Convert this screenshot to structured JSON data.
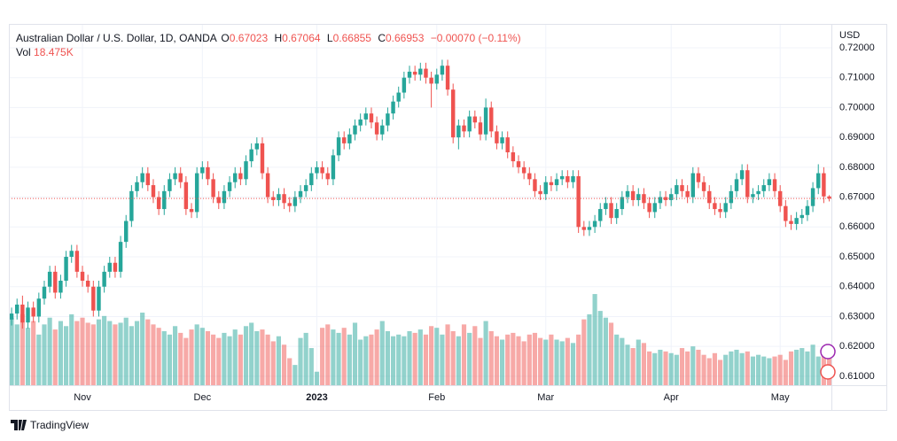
{
  "chart_data": {
    "type": "candlestick",
    "title": "Australian Dollar / U.S. Dollar, 1D, OANDA",
    "legend": {
      "items": [
        {
          "label": "O",
          "value": "0.67023"
        },
        {
          "label": "H",
          "value": "0.67064"
        },
        {
          "label": "L",
          "value": "0.66855"
        },
        {
          "label": "C",
          "value": "0.66953"
        }
      ],
      "change": "−0.00070 (−0.11%)",
      "volume_label": "Vol",
      "volume_value": "18.475K"
    },
    "y_axis_label": "USD",
    "up_color": "#26a69a",
    "down_color": "#ef5350",
    "volume_up_color": "rgba(38,166,154,0.5)",
    "volume_down_color": "rgba(239,83,80,0.5)",
    "grid": true,
    "xlim": [
      -0.5,
      150.4
    ],
    "ylim": [
      0.607,
      0.728
    ],
    "y2lim": [
      0,
      214
    ],
    "xticks": [
      {
        "value": 13,
        "label": "Nov"
      },
      {
        "value": 35,
        "label": "Dec"
      },
      {
        "value": 56,
        "label": "2023"
      },
      {
        "value": 78,
        "label": "Feb"
      },
      {
        "value": 98,
        "label": "Mar"
      },
      {
        "value": 121,
        "label": "Apr"
      },
      {
        "value": 141,
        "label": "May"
      }
    ],
    "yticks": [
      {
        "value": 0.61,
        "label": "0.61000"
      },
      {
        "value": 0.62,
        "label": "0.62000"
      },
      {
        "value": 0.63,
        "label": "0.63000"
      },
      {
        "value": 0.64,
        "label": "0.64000"
      },
      {
        "value": 0.65,
        "label": "0.65000"
      },
      {
        "value": 0.66,
        "label": "0.66000"
      },
      {
        "value": 0.67,
        "label": "0.67000"
      },
      {
        "value": 0.68,
        "label": "0.68000"
      },
      {
        "value": 0.69,
        "label": "0.69000"
      },
      {
        "value": 0.7,
        "label": "0.70000"
      },
      {
        "value": 0.71,
        "label": "0.71000"
      },
      {
        "value": 0.72,
        "label": "0.72000"
      }
    ],
    "x": [
      0,
      1,
      2,
      3,
      4,
      5,
      6,
      7,
      8,
      9,
      10,
      11,
      12,
      13,
      14,
      15,
      16,
      17,
      18,
      19,
      20,
      21,
      22,
      23,
      24,
      25,
      26,
      27,
      28,
      29,
      30,
      31,
      32,
      33,
      34,
      35,
      36,
      37,
      38,
      39,
      40,
      41,
      42,
      43,
      44,
      45,
      46,
      47,
      48,
      49,
      50,
      51,
      52,
      53,
      54,
      55,
      56,
      57,
      58,
      59,
      60,
      61,
      62,
      63,
      64,
      65,
      66,
      67,
      68,
      69,
      70,
      71,
      72,
      73,
      74,
      75,
      76,
      77,
      78,
      79,
      80,
      81,
      82,
      83,
      84,
      85,
      86,
      87,
      88,
      89,
      90,
      91,
      92,
      93,
      94,
      95,
      96,
      97,
      98,
      99,
      100,
      101,
      102,
      103,
      104,
      105,
      106,
      107,
      108,
      109,
      110,
      111,
      112,
      113,
      114,
      115,
      116,
      117,
      118,
      119,
      120,
      121,
      122,
      123,
      124,
      125,
      126,
      127,
      128,
      129,
      130,
      131,
      132,
      133,
      134,
      135,
      136,
      137,
      138,
      139,
      140,
      141,
      142,
      143,
      144,
      145,
      146,
      147,
      148,
      149,
      150
    ],
    "open": [
      0.629,
      0.631,
      0.634,
      0.628,
      0.633,
      0.63,
      0.636,
      0.64,
      0.645,
      0.638,
      0.642,
      0.65,
      0.652,
      0.645,
      0.642,
      0.64,
      0.632,
      0.64,
      0.645,
      0.648,
      0.645,
      0.655,
      0.662,
      0.672,
      0.675,
      0.678,
      0.674,
      0.67,
      0.666,
      0.672,
      0.676,
      0.678,
      0.675,
      0.666,
      0.665,
      0.678,
      0.68,
      0.676,
      0.67,
      0.668,
      0.672,
      0.675,
      0.678,
      0.676,
      0.682,
      0.686,
      0.688,
      0.678,
      0.67,
      0.669,
      0.671,
      0.668,
      0.667,
      0.67,
      0.672,
      0.674,
      0.678,
      0.68,
      0.678,
      0.676,
      0.684,
      0.69,
      0.688,
      0.691,
      0.694,
      0.696,
      0.698,
      0.695,
      0.691,
      0.694,
      0.698,
      0.702,
      0.705,
      0.71,
      0.712,
      0.711,
      0.713,
      0.71,
      0.708,
      0.711,
      0.714,
      0.706,
      0.69,
      0.694,
      0.692,
      0.697,
      0.695,
      0.691,
      0.7,
      0.692,
      0.688,
      0.69,
      0.685,
      0.682,
      0.68,
      0.678,
      0.676,
      0.672,
      0.671,
      0.675,
      0.674,
      0.676,
      0.677,
      0.675,
      0.677,
      0.66,
      0.659,
      0.66,
      0.662,
      0.666,
      0.668,
      0.663,
      0.666,
      0.67,
      0.672,
      0.669,
      0.671,
      0.668,
      0.665,
      0.668,
      0.67,
      0.669,
      0.671,
      0.674,
      0.672,
      0.67,
      0.678,
      0.675,
      0.672,
      0.668,
      0.666,
      0.665,
      0.668,
      0.672,
      0.676,
      0.679,
      0.67,
      0.671,
      0.672,
      0.674,
      0.676,
      0.672,
      0.667,
      0.662,
      0.661,
      0.663,
      0.664,
      0.667,
      0.673,
      0.678,
      0.67023
    ],
    "high": [
      0.633,
      0.636,
      0.637,
      0.635,
      0.635,
      0.638,
      0.642,
      0.647,
      0.647,
      0.644,
      0.652,
      0.654,
      0.654,
      0.647,
      0.644,
      0.642,
      0.642,
      0.647,
      0.65,
      0.65,
      0.657,
      0.664,
      0.674,
      0.677,
      0.68,
      0.68,
      0.676,
      0.672,
      0.674,
      0.678,
      0.68,
      0.68,
      0.677,
      0.668,
      0.68,
      0.682,
      0.682,
      0.678,
      0.672,
      0.674,
      0.677,
      0.68,
      0.68,
      0.684,
      0.688,
      0.69,
      0.69,
      0.68,
      0.672,
      0.673,
      0.673,
      0.67,
      0.672,
      0.674,
      0.676,
      0.68,
      0.682,
      0.682,
      0.68,
      0.686,
      0.692,
      0.692,
      0.693,
      0.696,
      0.698,
      0.7,
      0.7,
      0.697,
      0.696,
      0.7,
      0.704,
      0.707,
      0.712,
      0.714,
      0.714,
      0.715,
      0.715,
      0.712,
      0.713,
      0.716,
      0.716,
      0.708,
      0.696,
      0.696,
      0.699,
      0.699,
      0.697,
      0.703,
      0.702,
      0.694,
      0.692,
      0.692,
      0.687,
      0.684,
      0.682,
      0.68,
      0.678,
      0.674,
      0.677,
      0.677,
      0.678,
      0.679,
      0.679,
      0.679,
      0.679,
      0.662,
      0.662,
      0.664,
      0.668,
      0.67,
      0.67,
      0.668,
      0.672,
      0.674,
      0.674,
      0.673,
      0.673,
      0.67,
      0.67,
      0.672,
      0.672,
      0.673,
      0.676,
      0.676,
      0.674,
      0.68,
      0.68,
      0.677,
      0.674,
      0.67,
      0.668,
      0.67,
      0.674,
      0.678,
      0.681,
      0.681,
      0.673,
      0.674,
      0.676,
      0.678,
      0.678,
      0.674,
      0.669,
      0.664,
      0.665,
      0.666,
      0.669,
      0.675,
      0.681,
      0.68,
      0.67064
    ],
    "low": [
      0.627,
      0.629,
      0.626,
      0.626,
      0.628,
      0.628,
      0.634,
      0.638,
      0.636,
      0.636,
      0.64,
      0.648,
      0.643,
      0.64,
      0.638,
      0.63,
      0.63,
      0.638,
      0.643,
      0.643,
      0.643,
      0.653,
      0.66,
      0.67,
      0.673,
      0.672,
      0.668,
      0.664,
      0.664,
      0.67,
      0.674,
      0.673,
      0.664,
      0.663,
      0.663,
      0.676,
      0.674,
      0.668,
      0.666,
      0.666,
      0.67,
      0.673,
      0.674,
      0.674,
      0.68,
      0.684,
      0.676,
      0.668,
      0.667,
      0.667,
      0.666,
      0.665,
      0.665,
      0.668,
      0.67,
      0.672,
      0.676,
      0.676,
      0.674,
      0.674,
      0.682,
      0.686,
      0.686,
      0.689,
      0.692,
      0.694,
      0.693,
      0.689,
      0.689,
      0.692,
      0.696,
      0.7,
      0.703,
      0.708,
      0.709,
      0.709,
      0.708,
      0.7,
      0.706,
      0.709,
      0.704,
      0.688,
      0.686,
      0.69,
      0.69,
      0.693,
      0.689,
      0.689,
      0.69,
      0.686,
      0.686,
      0.683,
      0.68,
      0.678,
      0.676,
      0.674,
      0.67,
      0.669,
      0.669,
      0.672,
      0.672,
      0.674,
      0.673,
      0.673,
      0.658,
      0.657,
      0.657,
      0.658,
      0.66,
      0.664,
      0.661,
      0.661,
      0.664,
      0.668,
      0.667,
      0.667,
      0.666,
      0.663,
      0.663,
      0.666,
      0.667,
      0.667,
      0.669,
      0.67,
      0.668,
      0.668,
      0.673,
      0.67,
      0.666,
      0.664,
      0.663,
      0.663,
      0.666,
      0.67,
      0.674,
      0.668,
      0.668,
      0.669,
      0.67,
      0.672,
      0.67,
      0.665,
      0.66,
      0.659,
      0.659,
      0.661,
      0.662,
      0.665,
      0.671,
      0.668,
      0.66855
    ],
    "close": [
      0.631,
      0.634,
      0.628,
      0.633,
      0.63,
      0.636,
      0.64,
      0.645,
      0.638,
      0.642,
      0.65,
      0.652,
      0.645,
      0.642,
      0.64,
      0.632,
      0.64,
      0.645,
      0.648,
      0.645,
      0.655,
      0.662,
      0.672,
      0.675,
      0.678,
      0.674,
      0.67,
      0.666,
      0.672,
      0.676,
      0.678,
      0.675,
      0.666,
      0.665,
      0.678,
      0.68,
      0.676,
      0.67,
      0.668,
      0.672,
      0.675,
      0.678,
      0.676,
      0.682,
      0.686,
      0.688,
      0.678,
      0.67,
      0.669,
      0.671,
      0.668,
      0.667,
      0.67,
      0.672,
      0.674,
      0.678,
      0.68,
      0.678,
      0.676,
      0.684,
      0.69,
      0.688,
      0.691,
      0.694,
      0.696,
      0.698,
      0.695,
      0.691,
      0.694,
      0.698,
      0.702,
      0.705,
      0.71,
      0.712,
      0.711,
      0.713,
      0.71,
      0.708,
      0.711,
      0.714,
      0.706,
      0.69,
      0.694,
      0.692,
      0.697,
      0.695,
      0.691,
      0.7,
      0.692,
      0.688,
      0.69,
      0.685,
      0.682,
      0.68,
      0.678,
      0.676,
      0.672,
      0.671,
      0.675,
      0.674,
      0.676,
      0.677,
      0.675,
      0.677,
      0.66,
      0.659,
      0.66,
      0.662,
      0.666,
      0.668,
      0.663,
      0.666,
      0.67,
      0.672,
      0.669,
      0.671,
      0.668,
      0.665,
      0.668,
      0.67,
      0.669,
      0.671,
      0.674,
      0.672,
      0.67,
      0.678,
      0.675,
      0.672,
      0.668,
      0.666,
      0.665,
      0.668,
      0.672,
      0.676,
      0.679,
      0.67,
      0.671,
      0.672,
      0.674,
      0.676,
      0.672,
      0.667,
      0.662,
      0.661,
      0.663,
      0.664,
      0.667,
      0.673,
      0.678,
      0.67023,
      0.66953
    ],
    "volume": [
      40,
      36,
      42,
      34,
      38,
      30,
      36,
      40,
      33,
      38,
      35,
      42,
      38,
      40,
      37,
      36,
      39,
      41,
      38,
      36,
      37,
      40,
      35,
      38,
      43,
      39,
      36,
      34,
      32,
      30,
      35,
      31,
      28,
      33,
      36,
      34,
      32,
      30,
      28,
      31,
      29,
      33,
      30,
      35,
      37,
      32,
      33,
      30,
      26,
      29,
      24,
      16,
      12,
      28,
      31,
      22,
      8,
      34,
      36,
      33,
      31,
      34,
      30,
      37,
      27,
      29,
      30,
      33,
      38,
      32,
      29,
      30,
      29,
      32,
      31,
      33,
      30,
      35,
      34,
      30,
      36,
      32,
      29,
      36,
      31,
      35,
      28,
      38,
      32,
      29,
      27,
      30,
      31,
      29,
      26,
      30,
      31,
      28,
      27,
      30,
      27,
      26,
      28,
      25,
      30,
      39,
      42,
      54,
      44,
      40,
      37,
      30,
      28,
      24,
      22,
      27,
      25,
      20,
      19,
      21,
      20,
      19,
      18,
      22,
      20,
      23,
      21,
      18,
      16,
      19,
      15,
      18,
      20,
      21,
      19,
      20,
      17,
      18,
      17,
      16,
      17,
      18,
      15,
      20,
      21,
      22,
      20,
      24,
      17,
      19,
      18.475
    ]
  },
  "footer": "TradingView"
}
